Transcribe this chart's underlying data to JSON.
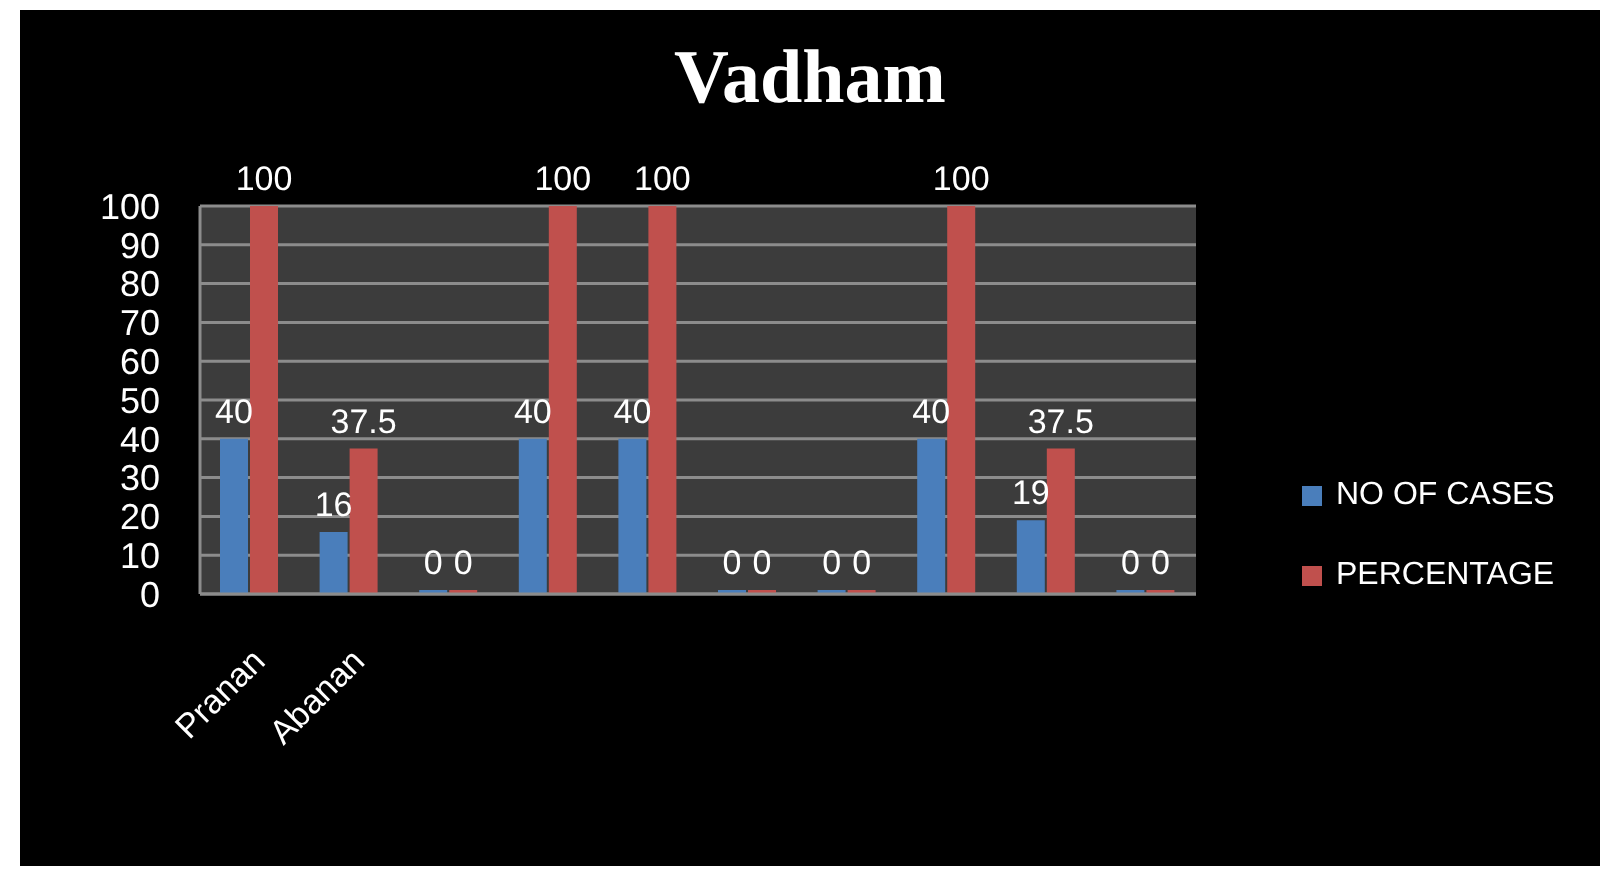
{
  "chart_data": {
    "type": "bar",
    "title": "Vadham",
    "categories": [
      "Pranan",
      "Abanan",
      null,
      null,
      null,
      null,
      null,
      null,
      null,
      null
    ],
    "series": [
      {
        "name": "NO OF CASES",
        "color": "#4a7ebb",
        "values": [
          40,
          16,
          0,
          40,
          40,
          0,
          0,
          40,
          19,
          0
        ]
      },
      {
        "name": "PERCENTAGE",
        "color": "#c0504d",
        "values": [
          100,
          37.5,
          0,
          100,
          100,
          0,
          0,
          100,
          37.5,
          0
        ]
      }
    ],
    "ylim": [
      0,
      100
    ],
    "yticks": [
      0,
      10,
      20,
      30,
      40,
      50,
      60,
      70,
      80,
      90,
      100
    ],
    "grid": "y",
    "legend": "right",
    "data_labels": true
  }
}
